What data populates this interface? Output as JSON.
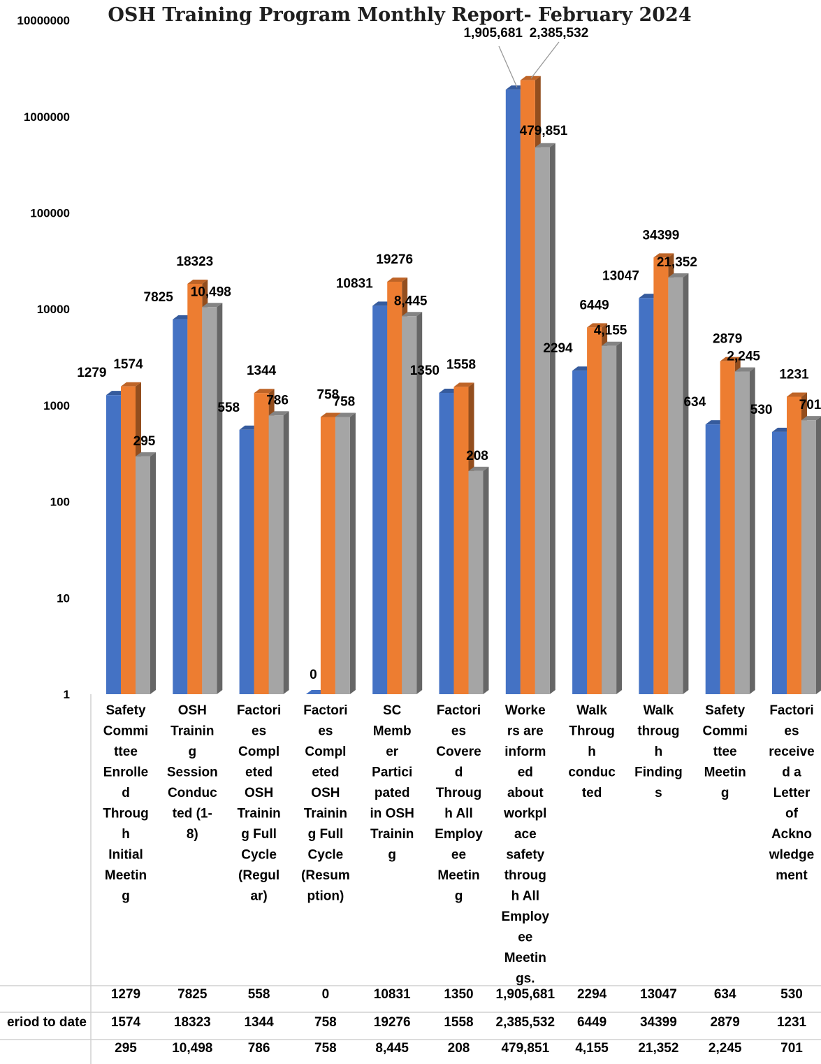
{
  "chart_data": {
    "type": "bar",
    "title": "OSH Training Program Monthly Report- February 2024",
    "y_scale": "log",
    "ylim": [
      1,
      10000000
    ],
    "y_ticks": [
      "1",
      "10",
      "100",
      "1000",
      "10000",
      "100000",
      "1000000",
      "10000000"
    ],
    "grid": false,
    "legend": "data table below chart",
    "categories": [
      "Safety Committee Enrolled Through Initial Meeting",
      "OSH Training Session Conducted (1-8)",
      "Factories Completed OSH Training Full Cycle (Regular)",
      "Factories Completed OSH Training Full Cycle (Resumption)",
      "SC Member Participated in OSH Training",
      "Factories Covered Through All Employee Meeting",
      "Workers are informed about workplace safety through All Employee Meetings.",
      "Walk Through conducted",
      "Walk through Findings",
      "Safety Committee Meeting",
      "Factories received a Letter of Acknowledgement"
    ],
    "category_lines": [
      [
        "Safety",
        "Commi",
        "ttee",
        "Enrolle",
        "d",
        "Throug",
        "h",
        "Initial",
        "Meetin",
        "g"
      ],
      [
        "OSH",
        "Trainin",
        "g",
        "Session",
        "Conduc",
        "ted (1-",
        "8)"
      ],
      [
        "Factori",
        "es",
        "Compl",
        "eted",
        "OSH",
        "Trainin",
        "g Full",
        "Cycle",
        "(Regul",
        "ar)"
      ],
      [
        "Factori",
        "es",
        "Compl",
        "eted",
        "OSH",
        "Trainin",
        "g Full",
        "Cycle",
        "(Resum",
        "ption)"
      ],
      [
        "SC",
        "Memb",
        "er",
        "Partici",
        "pated",
        "in OSH",
        "Trainin",
        "g"
      ],
      [
        "Factori",
        "es",
        "Covere",
        "d",
        "Throug",
        "h All",
        "Employ",
        "ee",
        "Meetin",
        "g"
      ],
      [
        "Worke",
        "rs are",
        "inform",
        "ed",
        "about",
        "workpl",
        "ace",
        "safety",
        "throug",
        "h All",
        "Employ",
        "ee",
        "Meetin",
        "gs."
      ],
      [
        "Walk",
        "Throug",
        "h",
        "conduc",
        "ted"
      ],
      [
        "Walk",
        "throug",
        "h",
        "Finding",
        "s"
      ],
      [
        "Safety",
        "Commi",
        "ttee",
        "Meetin",
        "g"
      ],
      [
        "Factori",
        "es",
        "receive",
        "d a",
        "Letter",
        "of",
        "Ackno",
        "wledge",
        "ment"
      ]
    ],
    "series": [
      {
        "name": "",
        "color": "#4472C4",
        "values": [
          1279,
          7825,
          558,
          0,
          10831,
          1350,
          1905681,
          2294,
          13047,
          634,
          530
        ],
        "labels": [
          "1279",
          "7825",
          "558",
          "0",
          "10831",
          "1350",
          "1,905,681",
          "2294",
          "13047",
          "634",
          "530"
        ]
      },
      {
        "name": "eriod to date",
        "color": "#ED7D31",
        "values": [
          1574,
          18323,
          1344,
          758,
          19276,
          1558,
          2385532,
          6449,
          34399,
          2879,
          1231
        ],
        "labels": [
          "1574",
          "18323",
          "1344",
          "758",
          "19276",
          "1558",
          "2,385,532",
          "6449",
          "34399",
          "2879",
          "1231"
        ]
      },
      {
        "name": "",
        "color": "#A5A5A5",
        "values": [
          295,
          10498,
          786,
          758,
          8445,
          208,
          479851,
          4155,
          21352,
          2245,
          701
        ],
        "labels": [
          "295",
          "10,498",
          "786",
          "758",
          "8,445",
          "208",
          "479,851",
          "4,155",
          "21,352",
          "2,245",
          "701"
        ]
      }
    ]
  }
}
